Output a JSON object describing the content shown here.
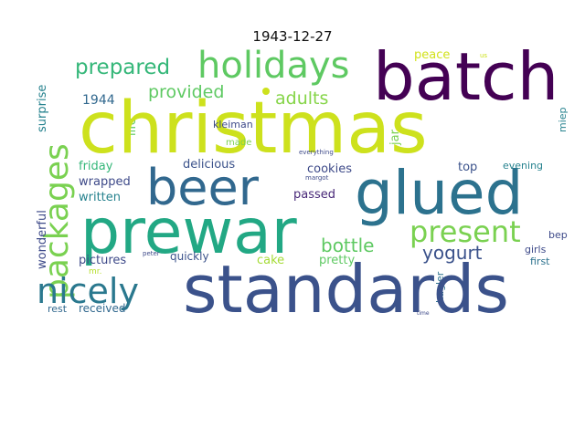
{
  "title": "1943-12-27",
  "words": [
    {
      "text": "christmas",
      "color": "#cde11d"
    },
    {
      "text": "batch",
      "color": "#440154"
    },
    {
      "text": "prewar",
      "color": "#22a884"
    },
    {
      "text": "standards",
      "color": "#3b528b"
    },
    {
      "text": "glued",
      "color": "#2c728e"
    },
    {
      "text": "beer",
      "color": "#31688e"
    },
    {
      "text": "holidays",
      "color": "#5ec962"
    },
    {
      "text": "packages",
      "color": "#7ad151"
    },
    {
      "text": "nicely",
      "color": "#2a788e"
    },
    {
      "text": "present",
      "color": "#7ad151"
    },
    {
      "text": "prepared",
      "color": "#35b779"
    },
    {
      "text": "provided",
      "color": "#5ec962"
    },
    {
      "text": "adults",
      "color": "#86d549"
    },
    {
      "text": "bottle",
      "color": "#5ec962"
    },
    {
      "text": "yogurt",
      "color": "#3b528b"
    },
    {
      "text": "1944",
      "color": "#31688e"
    },
    {
      "text": "cookies",
      "color": "#3e4a89"
    },
    {
      "text": "delicious",
      "color": "#3b528b"
    },
    {
      "text": "friday",
      "color": "#35b779"
    },
    {
      "text": "wrapped",
      "color": "#3e4a89"
    },
    {
      "text": "written",
      "color": "#26828e"
    },
    {
      "text": "pictures",
      "color": "#3e4a89"
    },
    {
      "text": "quickly",
      "color": "#3b528b"
    },
    {
      "text": "cake",
      "color": "#a5db36"
    },
    {
      "text": "pretty",
      "color": "#5ec962"
    },
    {
      "text": "passed",
      "color": "#482878"
    },
    {
      "text": "top",
      "color": "#3b528b"
    },
    {
      "text": "received",
      "color": "#31688e"
    },
    {
      "text": "wonderful",
      "color": "#3e4a89"
    },
    {
      "text": "surprise",
      "color": "#26828e"
    },
    {
      "text": "peace",
      "color": "#d2e21b"
    },
    {
      "text": "jar",
      "color": "#7ad151"
    },
    {
      "text": "kleiman",
      "color": "#3e4a89"
    },
    {
      "text": "made",
      "color": "#7ad151"
    },
    {
      "text": "life",
      "color": "#5ec962"
    },
    {
      "text": "evening",
      "color": "#26828e"
    },
    {
      "text": "girls",
      "color": "#3e4a89"
    },
    {
      "text": "first",
      "color": "#2c728e"
    },
    {
      "text": "bep",
      "color": "#3e4a89"
    },
    {
      "text": "kugler",
      "color": "#2c728e"
    },
    {
      "text": "miep",
      "color": "#26828e"
    },
    {
      "text": "mr.",
      "color": "#b5de2b"
    },
    {
      "text": "rest",
      "color": "#31688e"
    },
    {
      "text": "everything",
      "color": "#3e4a89"
    },
    {
      "text": "margot",
      "color": "#3e4a89"
    },
    {
      "text": "peter",
      "color": "#3e4a89"
    },
    {
      "text": "time",
      "color": "#3e4a89"
    },
    {
      "text": "us",
      "color": "#cde11d"
    }
  ]
}
